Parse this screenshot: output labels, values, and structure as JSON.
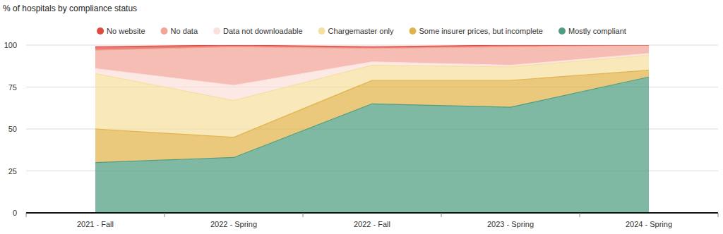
{
  "chart_data": {
    "type": "area",
    "title": "% of hospitals by compliance status",
    "categories": [
      "2021 - Fall",
      "2022 - Spring",
      "2022 - Fall",
      "2023 - Spring",
      "2024 - Spring"
    ],
    "series": [
      {
        "name": "No website",
        "color": "#e04a3f",
        "values": [
          2,
          1,
          1,
          1,
          0
        ]
      },
      {
        "name": "No data",
        "color": "#f2a497",
        "values": [
          11,
          23,
          8,
          11,
          5
        ]
      },
      {
        "name": "Data not downloadable",
        "color": "#fbe0dc",
        "values": [
          3,
          9,
          2,
          1,
          1
        ]
      },
      {
        "name": "Chargemaster only",
        "color": "#f6df9f",
        "values": [
          33,
          22,
          9,
          8,
          9
        ]
      },
      {
        "name": "Some insurer prices, but incomplete",
        "color": "#e2b34a",
        "values": [
          20,
          12,
          14,
          16,
          4
        ]
      },
      {
        "name": "Mostly compliant",
        "color": "#4e9e80",
        "values": [
          30,
          33,
          65,
          63,
          81
        ]
      }
    ],
    "ylim": [
      0,
      100
    ],
    "yticks": [
      0,
      25,
      50,
      75,
      100
    ],
    "grid": true,
    "stacked": true,
    "legend": "top"
  }
}
